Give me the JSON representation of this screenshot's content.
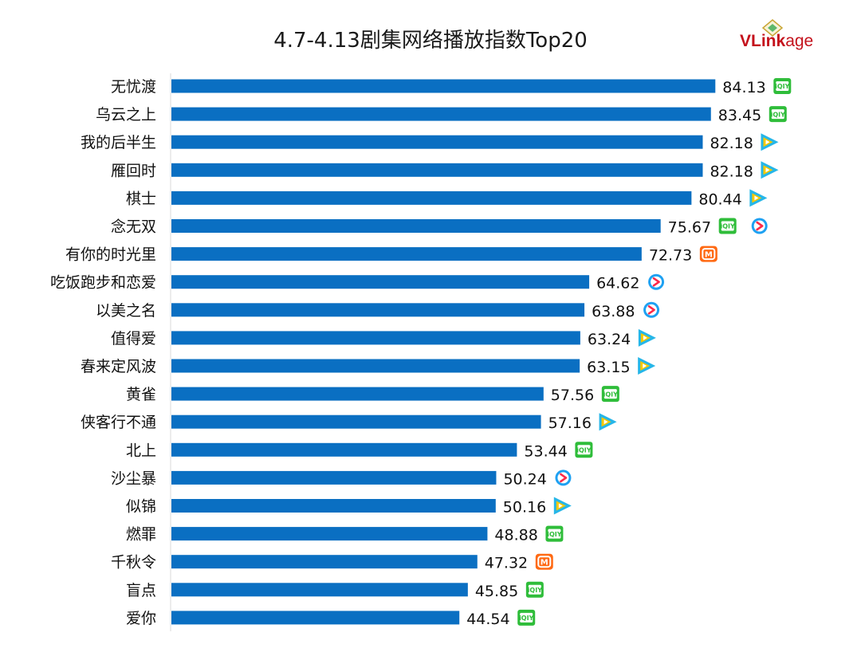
{
  "title": "4.7-4.13剧集网络播放指数Top20",
  "logo": {
    "bold": "VLink",
    "rest": "age"
  },
  "colors": {
    "bar": "#0a6fc2",
    "iqiyi": "#2fbd3a",
    "tencent_cyan": "#26b6e8",
    "tencent_yellow": "#f7c800",
    "youku_blue": "#1ea1f2",
    "youku_red": "#ff2a4a",
    "mango": "#ff6a14"
  },
  "chart_data": {
    "type": "bar",
    "orientation": "horizontal",
    "categories": [
      "无忧渡",
      "乌云之上",
      "我的后半生",
      "雁回时",
      "棋士",
      "念无双",
      "有你的时光里",
      "吃饭跑步和恋爱",
      "以美之名",
      "值得爱",
      "春来定风波",
      "黄雀",
      "侠客行不通",
      "北上",
      "沙尘暴",
      "似锦",
      "燃罪",
      "千秋令",
      "盲点",
      "爱你"
    ],
    "values": [
      84.13,
      83.45,
      82.18,
      82.18,
      80.44,
      75.67,
      72.73,
      64.62,
      63.88,
      63.24,
      63.15,
      57.56,
      57.16,
      53.44,
      50.24,
      50.16,
      48.88,
      47.32,
      45.85,
      44.54
    ],
    "value_labels": [
      "84.13",
      "83.45",
      "82.18",
      "82.18",
      "80.44",
      "75.67",
      "72.73",
      "64.62",
      "63.88",
      "63.24",
      "63.15",
      "57.56",
      "57.16",
      "53.44",
      "50.24",
      "50.16",
      "48.88",
      "47.32",
      "45.85",
      "44.54"
    ],
    "platforms": [
      [
        "iqiyi"
      ],
      [
        "iqiyi"
      ],
      [
        "tencent"
      ],
      [
        "tencent"
      ],
      [
        "tencent"
      ],
      [
        "iqiyi",
        "youku"
      ],
      [
        "mango"
      ],
      [
        "youku"
      ],
      [
        "youku"
      ],
      [
        "tencent"
      ],
      [
        "tencent"
      ],
      [
        "iqiyi"
      ],
      [
        "tencent"
      ],
      [
        "iqiyi"
      ],
      [
        "youku"
      ],
      [
        "tencent"
      ],
      [
        "iqiyi"
      ],
      [
        "mango"
      ],
      [
        "iqiyi"
      ],
      [
        "iqiyi"
      ]
    ],
    "platform_icons": {
      "iqiyi": {
        "icon": "iqiyi-icon",
        "text": "iQIY"
      },
      "tencent": {
        "icon": "tencent-video-icon"
      },
      "youku": {
        "icon": "youku-icon"
      },
      "mango": {
        "icon": "mango-tv-icon",
        "text": "M"
      }
    },
    "xlim": [
      0,
      100
    ],
    "grid": false,
    "legend": "none"
  }
}
